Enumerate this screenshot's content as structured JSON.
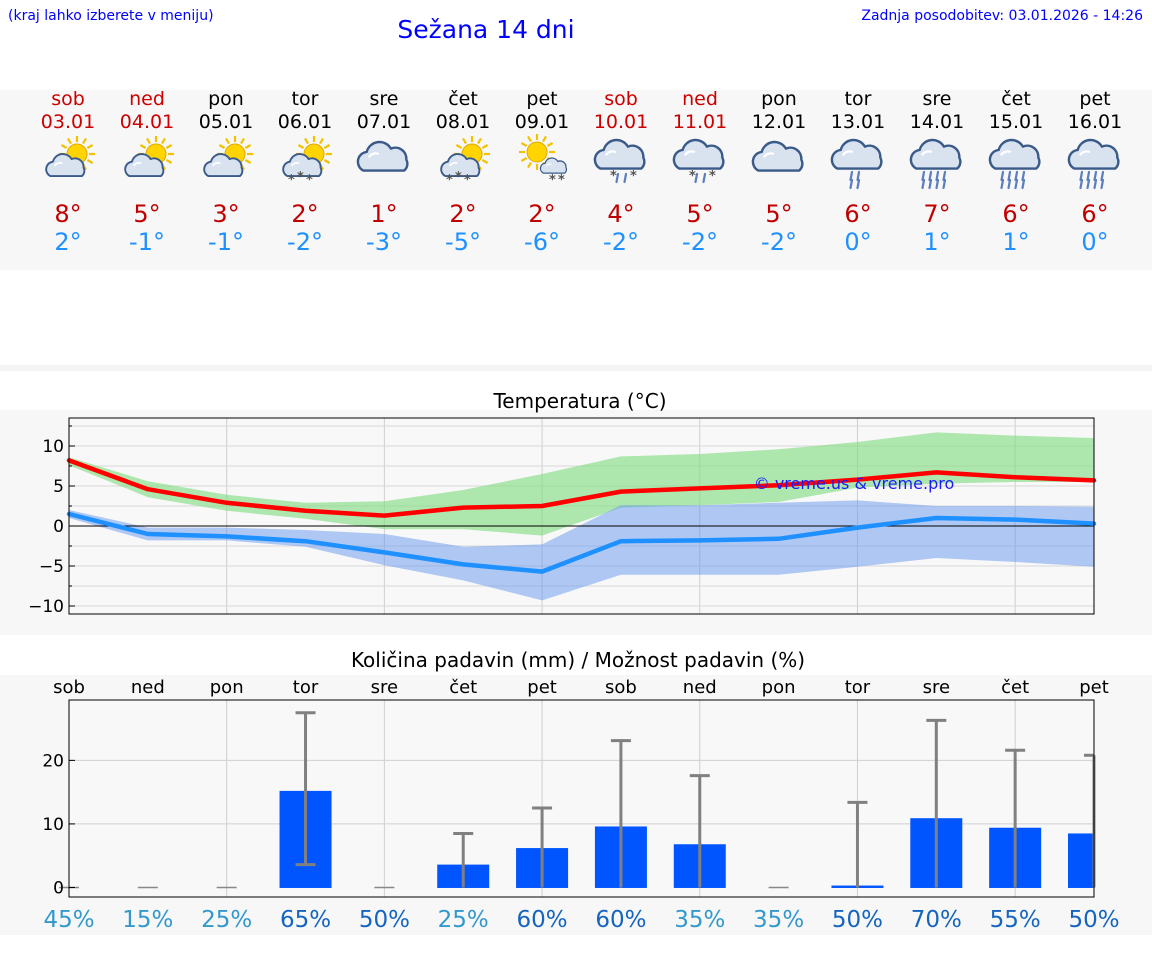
{
  "header": {
    "hint": "(kraj lahko izberete v meniju)",
    "title": "Sežana 14 dni",
    "updated": "Zadnja posodobitev: 03.01.2026 - 14:26"
  },
  "forecast": [
    {
      "day": "sob",
      "date": "03.01",
      "weekend": true,
      "icon": "sun-cloud-icon",
      "tmax": "8°",
      "tmin": "2°"
    },
    {
      "day": "ned",
      "date": "04.01",
      "weekend": true,
      "icon": "sun-cloud-icon",
      "tmax": "5°",
      "tmin": "-1°"
    },
    {
      "day": "pon",
      "date": "05.01",
      "weekend": false,
      "icon": "sun-cloud-icon",
      "tmax": "3°",
      "tmin": "-1°"
    },
    {
      "day": "tor",
      "date": "06.01",
      "weekend": false,
      "icon": "sun-cloud-snow-icon",
      "tmax": "2°",
      "tmin": "-2°"
    },
    {
      "day": "sre",
      "date": "07.01",
      "weekend": false,
      "icon": "cloud-icon",
      "tmax": "1°",
      "tmin": "-3°"
    },
    {
      "day": "čet",
      "date": "08.01",
      "weekend": false,
      "icon": "sun-cloud-snow-icon",
      "tmax": "2°",
      "tmin": "-5°"
    },
    {
      "day": "pet",
      "date": "09.01",
      "weekend": false,
      "icon": "sun-small-cloud-snow-icon",
      "tmax": "2°",
      "tmin": "-6°"
    },
    {
      "day": "sob",
      "date": "10.01",
      "weekend": true,
      "icon": "cloud-sleet-icon",
      "tmax": "4°",
      "tmin": "-2°"
    },
    {
      "day": "ned",
      "date": "11.01",
      "weekend": true,
      "icon": "cloud-sleet-icon",
      "tmax": "5°",
      "tmin": "-2°"
    },
    {
      "day": "pon",
      "date": "12.01",
      "weekend": false,
      "icon": "cloud-icon",
      "tmax": "5°",
      "tmin": "-2°"
    },
    {
      "day": "tor",
      "date": "13.01",
      "weekend": false,
      "icon": "cloud-rain-light-icon",
      "tmax": "6°",
      "tmin": "0°"
    },
    {
      "day": "sre",
      "date": "14.01",
      "weekend": false,
      "icon": "cloud-rain-heavy-icon",
      "tmax": "7°",
      "tmin": "1°"
    },
    {
      "day": "čet",
      "date": "15.01",
      "weekend": false,
      "icon": "cloud-rain-heavy-icon",
      "tmax": "6°",
      "tmin": "1°"
    },
    {
      "day": "pet",
      "date": "16.01",
      "weekend": false,
      "icon": "cloud-rain-heavy-icon",
      "tmax": "6°",
      "tmin": "0°"
    }
  ],
  "chart_data": [
    {
      "type": "line",
      "title": "Temperatura (°C)",
      "ylim": [
        -11,
        13.5
      ],
      "yticks": [
        10,
        5,
        0,
        -5,
        -10
      ],
      "yticklabels": [
        "10",
        "5",
        "0",
        "−5",
        "−10"
      ],
      "xlim": [
        0,
        13
      ],
      "grid": true,
      "watermark": "© vreme.us & vreme.pro",
      "series": [
        {
          "name": "max",
          "color": "#ff0000",
          "values": [
            8.2,
            4.6,
            2.9,
            1.9,
            1.3,
            2.3,
            2.5,
            4.3,
            4.7,
            5.1,
            5.8,
            6.7,
            6.1,
            5.7
          ]
        },
        {
          "name": "min",
          "color": "#1e90ff",
          "values": [
            1.5,
            -1.0,
            -1.3,
            -1.9,
            -3.3,
            -4.8,
            -5.7,
            -1.9,
            -1.8,
            -1.6,
            -0.2,
            1.0,
            0.8,
            0.3
          ]
        }
      ],
      "bands": [
        {
          "name": "max-range",
          "color": "#7ddc7d",
          "upper": [
            8.6,
            5.6,
            3.9,
            2.9,
            3.1,
            4.5,
            6.5,
            8.7,
            9.0,
            9.6,
            10.5,
            11.7,
            11.3,
            11.0
          ],
          "lower": [
            7.6,
            3.6,
            1.9,
            0.9,
            -0.4,
            -0.4,
            -1.2,
            2.3,
            2.6,
            3.0,
            4.8,
            5.3,
            5.5,
            5.5
          ]
        },
        {
          "name": "min-range",
          "color": "#6495ed",
          "upper": [
            2.0,
            -0.2,
            -0.2,
            -0.5,
            -1.0,
            -2.6,
            -2.3,
            2.6,
            2.6,
            2.9,
            3.2,
            2.5,
            2.5,
            2.4
          ],
          "lower": [
            1.0,
            -1.8,
            -1.8,
            -2.6,
            -4.9,
            -6.8,
            -9.3,
            -6.1,
            -6.1,
            -6.1,
            -5.1,
            -4.0,
            -4.5,
            -5.1
          ]
        }
      ]
    },
    {
      "type": "bar",
      "title": "Količina padavin (mm) / Možnost padavin (%)",
      "categories": [
        "sob",
        "ned",
        "pon",
        "tor",
        "sre",
        "čet",
        "pet",
        "sob",
        "ned",
        "pon",
        "tor",
        "sre",
        "čet",
        "pet"
      ],
      "values": [
        0,
        0,
        0,
        15.2,
        0,
        3.6,
        6.2,
        9.6,
        6.8,
        0,
        0.3,
        10.9,
        9.4,
        8.5
      ],
      "errorbars": [
        {
          "low": 0,
          "high": 0
        },
        {
          "low": 0,
          "high": 0
        },
        {
          "low": 0,
          "high": 0
        },
        {
          "low": 3.6,
          "high": 27.5
        },
        {
          "low": 0,
          "high": 0
        },
        {
          "low": 0,
          "high": 8.5
        },
        {
          "low": 0,
          "high": 12.5
        },
        {
          "low": 0,
          "high": 23.1
        },
        {
          "low": 0,
          "high": 17.6
        },
        {
          "low": 0,
          "high": 0
        },
        {
          "low": 0,
          "high": 13.4
        },
        {
          "low": 0,
          "high": 26.3
        },
        {
          "low": 0,
          "high": 21.6
        },
        {
          "low": 0,
          "high": 20.8
        }
      ],
      "ylim": [
        -1.5,
        29.5
      ],
      "yticks": [
        20,
        10,
        0
      ],
      "color": "#0055ff",
      "probability": [
        "45%",
        "15%",
        "25%",
        "65%",
        "50%",
        "25%",
        "60%",
        "60%",
        "35%",
        "35%",
        "50%",
        "70%",
        "55%",
        "50%"
      ]
    }
  ]
}
